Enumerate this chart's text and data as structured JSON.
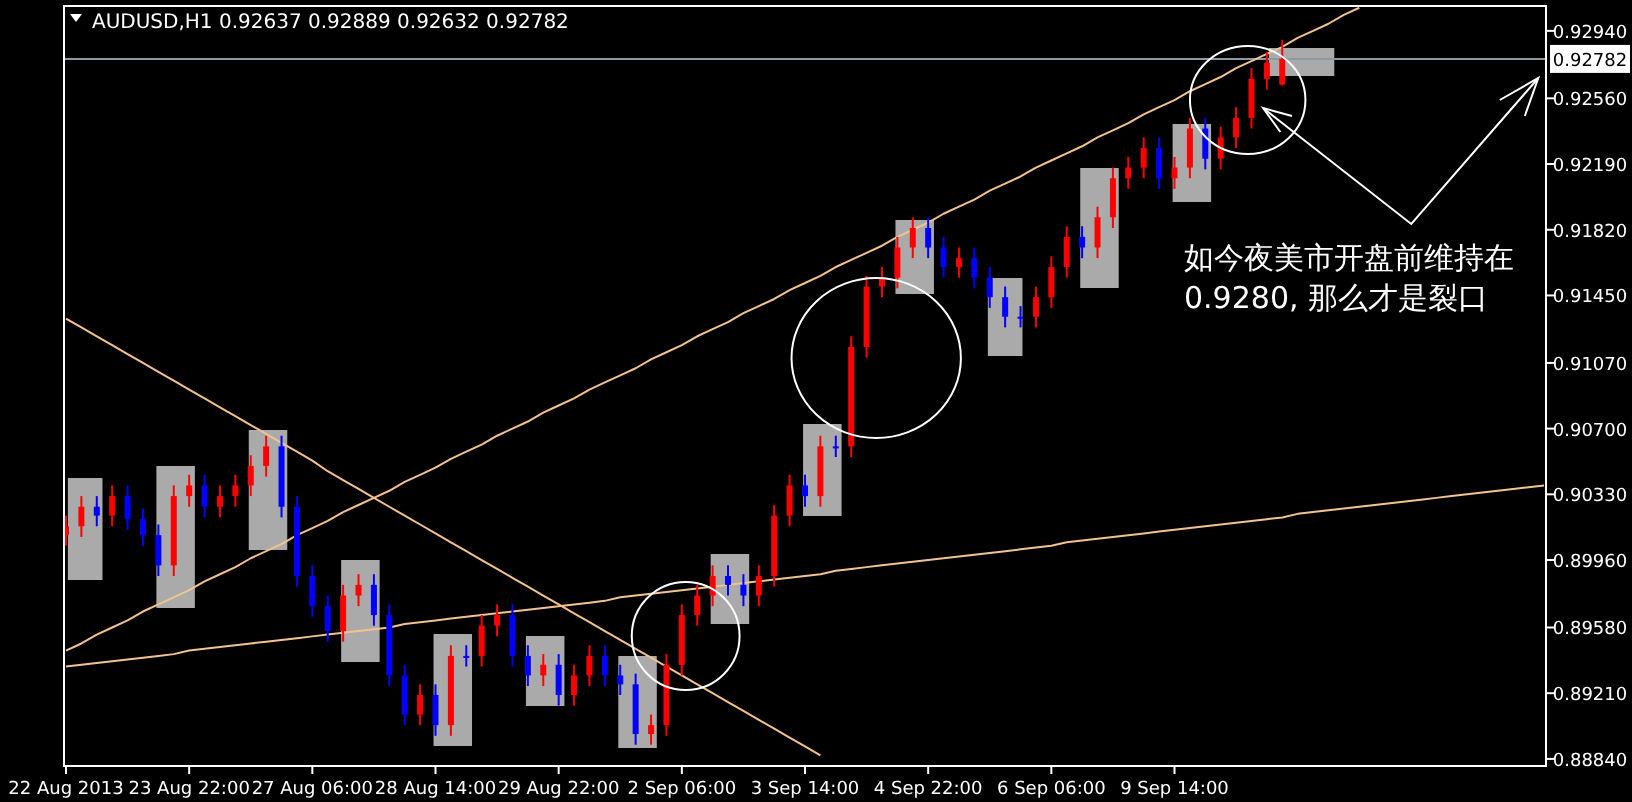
{
  "chart_data": {
    "type": "candlestick",
    "title": "AUDUSD,H1  0.92637 0.92889 0.92632 0.92782",
    "categories": [
      "22 Aug 2013",
      null,
      null,
      null,
      null,
      null,
      null,
      null,
      "23 Aug 22:00",
      null,
      null,
      null,
      null,
      null,
      null,
      null,
      "27 Aug 06:00",
      null,
      null,
      null,
      null,
      null,
      null,
      null,
      "28 Aug 14:00",
      null,
      null,
      null,
      null,
      null,
      null,
      null,
      "29 Aug 22:00",
      null,
      null,
      null,
      null,
      null,
      null,
      null,
      "2 Sep 06:00",
      null,
      null,
      null,
      null,
      null,
      null,
      null,
      "3 Sep 14:00",
      null,
      null,
      null,
      null,
      null,
      null,
      null,
      "4 Sep 22:00",
      null,
      null,
      null,
      null,
      null,
      null,
      null,
      "6 Sep 06:00",
      null,
      null,
      null,
      null,
      null,
      null,
      null,
      "9 Sep 14:00",
      null,
      null,
      null,
      null,
      null,
      null,
      null,
      null,
      null,
      null,
      null,
      null,
      null,
      null,
      null,
      null,
      null,
      null,
      null,
      null,
      null,
      null,
      null,
      null
    ],
    "ohlc": [
      [
        0.901,
        0.9021,
        0.9004,
        0.9015
      ],
      [
        0.9015,
        0.9032,
        0.9009,
        0.9026
      ],
      [
        0.9026,
        0.9032,
        0.9015,
        0.9021
      ],
      [
        0.9021,
        0.9038,
        0.9015,
        0.9032
      ],
      [
        0.9032,
        0.9038,
        0.9013,
        0.9019
      ],
      [
        0.9019,
        0.9025,
        0.9004,
        0.901
      ],
      [
        0.901,
        0.9016,
        0.8987,
        0.8993
      ],
      [
        0.8993,
        0.9038,
        0.8987,
        0.9032
      ],
      [
        0.9032,
        0.9044,
        0.9026,
        0.9038
      ],
      [
        0.9038,
        0.9044,
        0.902,
        0.9026
      ],
      [
        0.9026,
        0.9038,
        0.902,
        0.9032
      ],
      [
        0.9032,
        0.9044,
        0.9026,
        0.9038
      ],
      [
        0.9038,
        0.9055,
        0.9032,
        0.9049
      ],
      [
        0.9049,
        0.9066,
        0.9043,
        0.906
      ],
      [
        0.906,
        0.9066,
        0.902,
        0.9026
      ],
      [
        0.9026,
        0.9032,
        0.8981,
        0.8987
      ],
      [
        0.8987,
        0.8993,
        0.8964,
        0.897
      ],
      [
        0.897,
        0.8976,
        0.895,
        0.8956
      ],
      [
        0.8956,
        0.8982,
        0.895,
        0.8976
      ],
      [
        0.8976,
        0.8988,
        0.897,
        0.8982
      ],
      [
        0.8982,
        0.8988,
        0.8959,
        0.8965
      ],
      [
        0.8965,
        0.8971,
        0.8925,
        0.8931
      ],
      [
        0.8931,
        0.8937,
        0.8903,
        0.8909
      ],
      [
        0.8909,
        0.8926,
        0.8903,
        0.892
      ],
      [
        0.892,
        0.8926,
        0.8897,
        0.8903
      ],
      [
        0.8903,
        0.8948,
        0.8897,
        0.8942
      ],
      [
        0.8942,
        0.8948,
        0.8936,
        0.8942
      ],
      [
        0.8942,
        0.8965,
        0.8936,
        0.8959
      ],
      [
        0.8959,
        0.8971,
        0.8953,
        0.8965
      ],
      [
        0.8965,
        0.8971,
        0.8936,
        0.8942
      ],
      [
        0.8942,
        0.8948,
        0.8925,
        0.8931
      ],
      [
        0.8931,
        0.8943,
        0.8925,
        0.8937
      ],
      [
        0.8937,
        0.8943,
        0.8914,
        0.892
      ],
      [
        0.892,
        0.8937,
        0.8914,
        0.8931
      ],
      [
        0.8931,
        0.8948,
        0.8925,
        0.8942
      ],
      [
        0.8942,
        0.8948,
        0.8925,
        0.8931
      ],
      [
        0.8931,
        0.8937,
        0.892,
        0.8926
      ],
      [
        0.8926,
        0.8932,
        0.8892,
        0.8898
      ],
      [
        0.8898,
        0.8909,
        0.8892,
        0.8903
      ],
      [
        0.8903,
        0.8943,
        0.8897,
        0.8937
      ],
      [
        0.8937,
        0.8971,
        0.8931,
        0.8965
      ],
      [
        0.8965,
        0.8982,
        0.8959,
        0.8976
      ],
      [
        0.8976,
        0.8993,
        0.897,
        0.8987
      ],
      [
        0.8987,
        0.8993,
        0.8976,
        0.8982
      ],
      [
        0.8982,
        0.8988,
        0.897,
        0.8976
      ],
      [
        0.8976,
        0.8993,
        0.897,
        0.8987
      ],
      [
        0.8987,
        0.9027,
        0.8981,
        0.9021
      ],
      [
        0.9021,
        0.9044,
        0.9015,
        0.9038
      ],
      [
        0.9038,
        0.9044,
        0.9026,
        0.9032
      ],
      [
        0.9032,
        0.9066,
        0.9026,
        0.906
      ],
      [
        0.906,
        0.9066,
        0.9054,
        0.906
      ],
      [
        0.906,
        0.9122,
        0.9054,
        0.9116
      ],
      [
        0.9116,
        0.9156,
        0.911,
        0.915
      ],
      [
        0.915,
        0.9161,
        0.9144,
        0.9155
      ],
      [
        0.9155,
        0.9178,
        0.9149,
        0.9172
      ],
      [
        0.9172,
        0.9189,
        0.9166,
        0.9183
      ],
      [
        0.9183,
        0.9189,
        0.9166,
        0.9172
      ],
      [
        0.9172,
        0.9178,
        0.9155,
        0.9161
      ],
      [
        0.9161,
        0.9172,
        0.9155,
        0.9166
      ],
      [
        0.9166,
        0.9172,
        0.9149,
        0.9155
      ],
      [
        0.9155,
        0.9161,
        0.9138,
        0.9144
      ],
      [
        0.9144,
        0.915,
        0.9127,
        0.9133
      ],
      [
        0.9133,
        0.9139,
        0.9127,
        0.9133
      ],
      [
        0.9133,
        0.915,
        0.9127,
        0.9144
      ],
      [
        0.9144,
        0.9167,
        0.9138,
        0.9161
      ],
      [
        0.9161,
        0.9184,
        0.9155,
        0.9178
      ],
      [
        0.9178,
        0.9184,
        0.9166,
        0.9172
      ],
      [
        0.9172,
        0.9195,
        0.9166,
        0.9189
      ],
      [
        0.9189,
        0.9217,
        0.9183,
        0.9211
      ],
      [
        0.9211,
        0.9223,
        0.9205,
        0.9217
      ],
      [
        0.9217,
        0.9234,
        0.9211,
        0.9228
      ],
      [
        0.9228,
        0.9234,
        0.9205,
        0.9211
      ],
      [
        0.9211,
        0.9223,
        0.9205,
        0.9217
      ],
      [
        0.9217,
        0.9245,
        0.9211,
        0.9239
      ],
      [
        0.9239,
        0.9245,
        0.9216,
        0.9222
      ],
      [
        0.9222,
        0.924,
        0.9216,
        0.9234
      ],
      [
        0.9234,
        0.9251,
        0.9228,
        0.9245
      ],
      [
        0.9245,
        0.9273,
        0.9239,
        0.9267
      ],
      [
        0.9267,
        0.9282,
        0.9261,
        0.9276
      ],
      [
        0.92637,
        0.92889,
        0.92632,
        0.92782
      ],
      null,
      null,
      null,
      null,
      null,
      null,
      null,
      null,
      null,
      null,
      null,
      null,
      null,
      null,
      null,
      null,
      null
    ],
    "colors": [
      "#ff0000",
      "#ff0000",
      "#0000ff",
      "#ff0000",
      "#0000ff",
      "#0000ff",
      "#0000ff",
      "#ff0000",
      "#ff0000",
      "#0000ff",
      "#ff0000",
      "#ff0000",
      "#ff0000",
      "#ff0000",
      "#0000ff",
      "#0000ff",
      "#0000ff",
      "#0000ff",
      "#ff0000",
      "#ff0000",
      "#0000ff",
      "#0000ff",
      "#0000ff",
      "#ff0000",
      "#0000ff",
      "#ff0000",
      "#0000ff",
      "#ff0000",
      "#ff0000",
      "#0000ff",
      "#0000ff",
      "#ff0000",
      "#0000ff",
      "#ff0000",
      "#ff0000",
      "#0000ff",
      "#0000ff",
      "#0000ff",
      "#ff0000",
      "#ff0000",
      "#ff0000",
      "#ff0000",
      "#ff0000",
      "#0000ff",
      "#0000ff",
      "#ff0000",
      "#ff0000",
      "#ff0000",
      "#0000ff",
      "#ff0000",
      "#0000ff",
      "#ff0000",
      "#ff0000",
      "#ff0000",
      "#ff0000",
      "#ff0000",
      "#0000ff",
      "#0000ff",
      "#ff0000",
      "#0000ff",
      "#0000ff",
      "#0000ff",
      "#0000ff",
      "#ff0000",
      "#ff0000",
      "#ff0000",
      "#0000ff",
      "#ff0000",
      "#ff0000",
      "#ff0000",
      "#ff0000",
      "#0000ff",
      "#ff0000",
      "#ff0000",
      "#0000ff",
      "#ff0000",
      "#ff0000",
      "#ff0000",
      "#ff0000",
      "#ff0000",
      null,
      null,
      null,
      null,
      null,
      null,
      null,
      null,
      null,
      null,
      null,
      null,
      null,
      null,
      null,
      null,
      null
    ],
    "series": [
      {
        "type": "line",
        "color": "#f2c38c",
        "values": [
          0.8945,
          0.8949,
          0.8954,
          0.8958,
          0.8962,
          0.8967,
          0.8971,
          0.8975,
          0.8979,
          0.8984,
          0.8988,
          0.8992,
          0.8997,
          0.9001,
          0.9005,
          0.901,
          0.9014,
          0.9018,
          0.9023,
          0.9027,
          0.9031,
          0.9035,
          0.904,
          0.9044,
          0.9048,
          0.9053,
          0.9057,
          0.9061,
          0.9066,
          0.907,
          0.9074,
          0.9079,
          0.9083,
          0.9087,
          0.9092,
          0.9096,
          0.91,
          0.9104,
          0.9109,
          0.9113,
          0.9117,
          0.9122,
          0.9126,
          0.913,
          0.9135,
          0.9139,
          0.9143,
          0.9148,
          0.9152,
          0.9156,
          0.9161,
          0.9165,
          0.9169,
          0.9173,
          0.9178,
          0.9182,
          0.9186,
          0.9191,
          0.9195,
          0.9199,
          0.9204,
          0.9208,
          0.9212,
          0.9217,
          0.9221,
          0.9225,
          0.9229,
          0.9234,
          0.9238,
          0.9242,
          0.9247,
          0.9251,
          0.9255,
          0.926,
          0.9264,
          0.9268,
          0.9273,
          0.9277,
          0.9281,
          0.9285,
          0.929,
          0.9294,
          0.9298,
          0.9303,
          0.9307,
          null,
          null,
          null,
          null,
          null,
          null,
          null,
          null,
          null,
          null,
          null,
          null
        ]
      },
      {
        "type": "line",
        "color": "#f2c38d",
        "values": [
          0.9132,
          0.9127,
          0.9122,
          0.9117,
          0.9112,
          0.9107,
          0.9102,
          0.9097,
          0.9092,
          0.9087,
          0.9082,
          0.9077,
          0.9072,
          0.9067,
          0.9062,
          0.9057,
          0.9052,
          0.9046,
          0.9041,
          0.9036,
          0.9031,
          0.9026,
          0.9021,
          0.9016,
          0.9011,
          0.9006,
          0.9001,
          0.8996,
          0.8991,
          0.8986,
          0.8981,
          0.8976,
          0.8971,
          0.8966,
          0.8961,
          0.8956,
          0.8951,
          0.8946,
          0.8941,
          0.8936,
          0.8931,
          0.8926,
          0.8921,
          0.8916,
          0.8911,
          0.8906,
          0.8901,
          0.8896,
          0.8891,
          0.8886,
          null,
          null,
          null,
          null,
          null,
          null,
          null,
          null,
          null,
          null,
          null,
          null,
          null,
          null,
          null,
          null,
          null,
          null,
          null,
          null,
          null,
          null,
          null,
          null,
          null,
          null,
          null,
          null,
          null,
          null,
          null,
          null,
          null,
          null,
          null,
          null,
          null,
          null,
          null,
          null,
          null,
          null,
          null,
          null,
          null,
          null,
          null
        ]
      },
      {
        "type": "line",
        "color": "#f2c38e",
        "values": [
          0.8936,
          0.8937,
          0.8938,
          0.8939,
          0.894,
          0.8941,
          0.8942,
          0.8943,
          0.8945,
          0.8946,
          0.8947,
          0.8948,
          0.8949,
          0.895,
          0.8951,
          0.8952,
          0.8953,
          0.8954,
          0.8955,
          0.8956,
          0.8957,
          0.8958,
          0.896,
          0.8961,
          0.8962,
          0.8963,
          0.8964,
          0.8965,
          0.8966,
          0.8967,
          0.8968,
          0.8969,
          0.897,
          0.8971,
          0.8972,
          0.8973,
          0.8975,
          0.8976,
          0.8977,
          0.8978,
          0.8979,
          0.898,
          0.8981,
          0.8982,
          0.8983,
          0.8984,
          0.8985,
          0.8986,
          0.8987,
          0.8988,
          0.899,
          0.8991,
          0.8992,
          0.8993,
          0.8994,
          0.8995,
          0.8996,
          0.8997,
          0.8998,
          0.8999,
          0.9,
          0.9001,
          0.9002,
          0.9003,
          0.9004,
          0.9006,
          0.9007,
          0.9008,
          0.9009,
          0.901,
          0.9011,
          0.9012,
          0.9013,
          0.9014,
          0.9015,
          0.9016,
          0.9017,
          0.9018,
          0.9019,
          0.902,
          0.9022,
          0.9023,
          0.9024,
          0.9025,
          0.9026,
          0.9027,
          0.9028,
          0.9029,
          0.903,
          0.9031,
          0.9032,
          0.9033,
          0.9034,
          0.9035,
          0.9036,
          0.9037,
          0.9038
        ]
      }
    ],
    "ylim": [
      0.888,
      0.9308
    ],
    "yticks": [
      {
        "value": 0.9294,
        "label": "0.92940"
      },
      {
        "value": 0.9256,
        "label": "0.92560"
      },
      {
        "value": 0.9219,
        "label": "0.92190"
      },
      {
        "value": 0.9182,
        "label": "0.91820"
      },
      {
        "value": 0.9145,
        "label": "0.91450"
      },
      {
        "value": 0.9107,
        "label": "0.91070"
      },
      {
        "value": 0.907,
        "label": "0.90700"
      },
      {
        "value": 0.9033,
        "label": "0.90330"
      },
      {
        "value": 0.8996,
        "label": "0.89960"
      },
      {
        "value": 0.8958,
        "label": "0.89580"
      },
      {
        "value": 0.8921,
        "label": "0.89210"
      },
      {
        "value": 0.8884,
        "label": "0.88840"
      }
    ],
    "ref_lines": [
      {
        "axis": "y",
        "value": 0.92782,
        "label": "0.92782",
        "color": "#8c98a4"
      }
    ],
    "annotations": [
      "如今夜美市开盘前维持在0.9280, 那么才是裂口"
    ]
  }
}
